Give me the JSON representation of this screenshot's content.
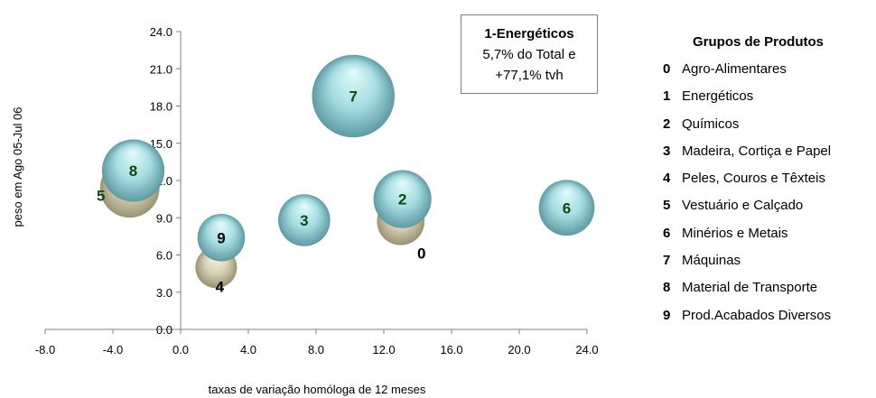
{
  "chart_data": {
    "type": "scatter",
    "subtype": "bubble",
    "title": "",
    "xlabel": "taxas de variação homóloga de 12 meses",
    "ylabel": "peso em Ago 05-Jul 06",
    "xlim": [
      -8,
      24
    ],
    "ylim": [
      0,
      24
    ],
    "x_ticks": [
      "-8.0",
      "-4.0",
      "0.0",
      "4.0",
      "8.0",
      "12.0",
      "16.0",
      "20.0",
      "24.0"
    ],
    "y_ticks": [
      "0.0",
      "3.0",
      "6.0",
      "9.0",
      "12.0",
      "15.0",
      "18.0",
      "21.0",
      "24.0"
    ],
    "grid": false,
    "legend_position": "right",
    "points": [
      {
        "code": "0",
        "x": 13.0,
        "y": 8.7,
        "size": 7.0,
        "style": "beige",
        "label_color": "#000000"
      },
      {
        "code": "5",
        "x": -3.0,
        "y": 11.4,
        "size": 11.0,
        "style": "beige",
        "label_color": "#0b4a10"
      },
      {
        "code": "4",
        "x": 2.1,
        "y": 5.0,
        "size": 5.0,
        "style": "beige",
        "label_color": "#000000"
      },
      {
        "code": "8",
        "x": -2.8,
        "y": 12.8,
        "size": 12.0,
        "style": "cyan",
        "label_color": "#0b4a10"
      },
      {
        "code": "9",
        "x": 2.4,
        "y": 7.4,
        "size": 7.0,
        "style": "cyan",
        "label_color": "#000000"
      },
      {
        "code": "3",
        "x": 7.3,
        "y": 8.8,
        "size": 8.5,
        "style": "cyan",
        "label_color": "#0b4a10"
      },
      {
        "code": "7",
        "x": 10.2,
        "y": 18.8,
        "size": 18.8,
        "style": "cyan",
        "label_color": "#0b4a10"
      },
      {
        "code": "2",
        "x": 13.1,
        "y": 10.5,
        "size": 10.5,
        "style": "cyan",
        "label_color": "#0b4a10"
      },
      {
        "code": "6",
        "x": 22.8,
        "y": 9.8,
        "size": 9.8,
        "style": "cyan",
        "label_color": "#0b4a10"
      }
    ],
    "annotation": {
      "title": "1-Energéticos",
      "lines": [
        "5,7% do Total e",
        "+77,1% tvh"
      ]
    },
    "legend": {
      "title": "Grupos de Produtos",
      "entries": [
        {
          "code": "0",
          "label": "Agro-Alimentares"
        },
        {
          "code": "1",
          "label": "Energéticos"
        },
        {
          "code": "2",
          "label": "Químicos"
        },
        {
          "code": "3",
          "label": "Madeira, Cortiça e Papel"
        },
        {
          "code": "4",
          "label": "Peles, Couros e Têxteis"
        },
        {
          "code": "5",
          "label": "Vestuário e Calçado"
        },
        {
          "code": "6",
          "label": "Minérios e Metais"
        },
        {
          "code": "7",
          "label": "Máquinas"
        },
        {
          "code": "8",
          "label": "Material de Transporte"
        },
        {
          "code": "9",
          "label": "Prod.Acabados Diversos"
        }
      ]
    },
    "colors": {
      "cyan_light": "#e4fbfb",
      "cyan_mid": "#a6dde2",
      "cyan_dark": "#5f9aa4",
      "beige_light": "#fbf9ec",
      "beige_mid": "#d8d2b4",
      "beige_dark": "#9a9273",
      "axis": "#808080"
    }
  }
}
